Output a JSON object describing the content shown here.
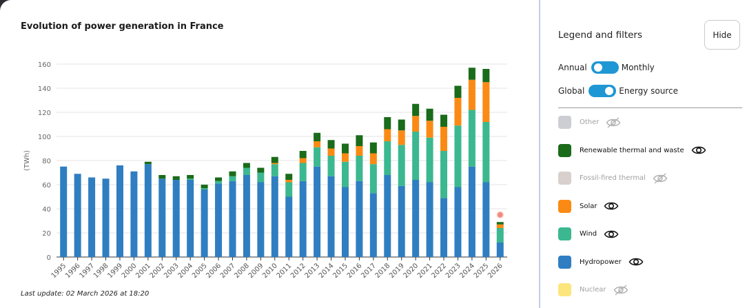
{
  "chart_title": "Evolution of power generation in France",
  "last_update": "Last update: 02 March 2026 at 18:20",
  "panel": {
    "title": "Legend and filters",
    "hide_label": "Hide",
    "toggle1_left": "Annual",
    "toggle1_right": "Monthly",
    "toggle2_left": "Global",
    "toggle2_right": "Energy source",
    "legend": [
      {
        "label": "Other",
        "color": "#a3a5b0",
        "enabled": false
      },
      {
        "label": "Renewable thermal and waste",
        "color": "#1a6b1a",
        "enabled": true
      },
      {
        "label": "Fossil-fired thermal",
        "color": "#b8a9a3",
        "enabled": false
      },
      {
        "label": "Solar",
        "color": "#fb8a15",
        "enabled": true
      },
      {
        "label": "Wind",
        "color": "#3bb88f",
        "enabled": true
      },
      {
        "label": "Hydropower",
        "color": "#2f7ec1",
        "enabled": true
      },
      {
        "label": "Nuclear",
        "color": "#f9cf12",
        "enabled": false
      }
    ]
  },
  "chart_data": {
    "type": "bar",
    "stacked": true,
    "ylabel": "(TWh)",
    "ylim": [
      0,
      160
    ],
    "yticks": [
      0,
      20,
      40,
      60,
      80,
      100,
      120,
      140,
      160
    ],
    "grid": true,
    "categories": [
      "1995",
      "1996",
      "1997",
      "1998",
      "1999",
      "2000",
      "2001",
      "2002",
      "2003",
      "2004",
      "2005",
      "2006",
      "2007",
      "2008",
      "2009",
      "2010",
      "2011",
      "2012",
      "2013",
      "2014",
      "2015",
      "2016",
      "2017",
      "2018",
      "2019",
      "2020",
      "2021",
      "2022",
      "2023",
      "2024",
      "2025",
      "2026"
    ],
    "series": [
      {
        "name": "Hydropower",
        "color": "#2f7ec1",
        "values": [
          75,
          69,
          66,
          65,
          76,
          71,
          77,
          65,
          64,
          64,
          56,
          61,
          63,
          68,
          62,
          67,
          50,
          63,
          75,
          67,
          58,
          63,
          53,
          68,
          59,
          64,
          62,
          49,
          58,
          75,
          62,
          12
        ]
      },
      {
        "name": "Wind",
        "color": "#3bb88f",
        "values": [
          0,
          0,
          0,
          0,
          0,
          0,
          0,
          0,
          0,
          1,
          1,
          2,
          4,
          6,
          8,
          10,
          12,
          15,
          16,
          17,
          21,
          21,
          24,
          28,
          34,
          40,
          37,
          39,
          51,
          47,
          50,
          12
        ]
      },
      {
        "name": "Solar",
        "color": "#fb8a15",
        "values": [
          0,
          0,
          0,
          0,
          0,
          0,
          0,
          0,
          0,
          0,
          0,
          0,
          0,
          0,
          0,
          1,
          2,
          4,
          5,
          6,
          7,
          8,
          9,
          10,
          12,
          13,
          14,
          20,
          23,
          25,
          33,
          3
        ]
      },
      {
        "name": "Renewable thermal and waste",
        "color": "#1a6b1a",
        "values": [
          0,
          0,
          0,
          0,
          0,
          0,
          2,
          3,
          3,
          3,
          3,
          3,
          4,
          4,
          4,
          5,
          5,
          6,
          7,
          7,
          8,
          9,
          9,
          10,
          9,
          10,
          10,
          10,
          10,
          10,
          11,
          2
        ]
      }
    ],
    "annotation_marker": {
      "category": "2026",
      "y": 35
    }
  }
}
